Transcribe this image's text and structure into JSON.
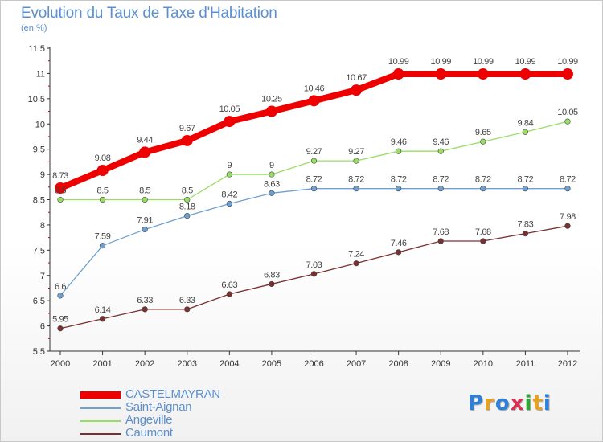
{
  "header": {
    "title": "Evolution du Taux de Taxe d'Habitation",
    "unit": "(en %)"
  },
  "chart_data": {
    "type": "line",
    "title": "Evolution du Taux de Taxe d'Habitation",
    "subtitle": "(en %)",
    "x": [
      "2000",
      "2001",
      "2002",
      "2003",
      "2004",
      "2005",
      "2006",
      "2007",
      "2008",
      "2009",
      "2010",
      "2011",
      "2012"
    ],
    "ylim": [
      5.5,
      11.5
    ],
    "yticks": [
      "5.5",
      "6",
      "6.5",
      "7",
      "7.5",
      "8",
      "8.5",
      "9",
      "9.5",
      "10",
      "10.5",
      "11",
      "11.5"
    ],
    "legend_position": "bottom-left",
    "series": [
      {
        "name": "CASTELMAYRAN",
        "color": "#ee0000",
        "values": [
          8.73,
          9.08,
          9.44,
          9.67,
          10.05,
          10.25,
          10.46,
          10.67,
          10.99,
          10.99,
          10.99,
          10.99,
          10.99
        ],
        "labels": [
          "8.73",
          "9.08",
          "9.44",
          "9.67",
          "10.05",
          "10.25",
          "10.46",
          "10.67",
          "10.99",
          "10.99",
          "10.99",
          "10.99",
          "10.99"
        ]
      },
      {
        "name": "Saint-Aignan",
        "color": "#6ea0d0",
        "values": [
          6.6,
          7.59,
          7.91,
          8.18,
          8.42,
          8.63,
          8.72,
          8.72,
          8.72,
          8.72,
          8.72,
          8.72,
          8.72
        ],
        "labels": [
          "6.6",
          "7.59",
          "7.91",
          "8.18",
          "8.42",
          "8.63",
          "8.72",
          "8.72",
          "8.72",
          "8.72",
          "8.72",
          "8.72",
          "8.72"
        ]
      },
      {
        "name": "Angeville",
        "color": "#99dd66",
        "values": [
          8.5,
          8.5,
          8.5,
          8.5,
          9,
          9,
          9.27,
          9.27,
          9.46,
          9.46,
          9.65,
          9.84,
          10.05
        ],
        "labels": [
          "8.5",
          "8.5",
          "8.5",
          "8.5",
          "9",
          "9",
          "9.27",
          "9.27",
          "9.46",
          "9.46",
          "9.65",
          "9.84",
          "10.05"
        ]
      },
      {
        "name": "Caumont",
        "color": "#7a3030",
        "values": [
          5.95,
          6.14,
          6.33,
          6.33,
          6.63,
          6.83,
          7.03,
          7.24,
          7.46,
          7.68,
          7.68,
          7.83,
          7.98
        ],
        "labels": [
          "5.95",
          "6.14",
          "6.33",
          "6.33",
          "6.63",
          "6.83",
          "7.03",
          "7.24",
          "7.46",
          "7.68",
          "7.68",
          "7.83",
          "7.98"
        ]
      }
    ]
  },
  "legend": {
    "items": [
      {
        "label": "CASTELMAYRAN",
        "color": "#ee0000"
      },
      {
        "label": "Saint-Aignan",
        "color": "#6ea0d0"
      },
      {
        "label": "Angeville",
        "color": "#99dd66"
      },
      {
        "label": "Caumont",
        "color": "#7a3030"
      }
    ]
  },
  "logo": {
    "letters": [
      "P",
      "r",
      "o",
      "x",
      "i",
      "t",
      "i"
    ],
    "colors": [
      "#2d7fd8",
      "#e8a020",
      "#2d7fd8",
      "#d83050",
      "#2aa830",
      "#e8a020",
      "#2d7fd8"
    ]
  }
}
